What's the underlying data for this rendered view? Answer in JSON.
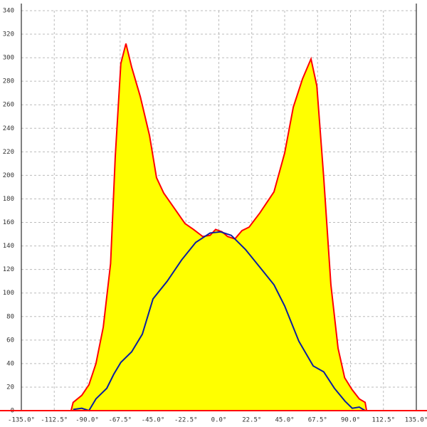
{
  "chart_data": {
    "type": "area",
    "xlim": [
      -135,
      135
    ],
    "ylim": [
      0,
      340
    ],
    "xticks": [
      {
        "value": -135,
        "label": "-135.0°"
      },
      {
        "value": -112.5,
        "label": "-112.5°"
      },
      {
        "value": -90,
        "label": "-90.0°"
      },
      {
        "value": -67.5,
        "label": "-67.5°"
      },
      {
        "value": -45,
        "label": "-45.0°"
      },
      {
        "value": -22.5,
        "label": "-22.5°"
      },
      {
        "value": 0,
        "label": "0.0°"
      },
      {
        "value": 22.5,
        "label": "22.5°"
      },
      {
        "value": 45,
        "label": "45.0°"
      },
      {
        "value": 67.5,
        "label": "67.5°"
      },
      {
        "value": 90,
        "label": "90.0°"
      },
      {
        "value": 112.5,
        "label": "112.5°"
      },
      {
        "value": 135,
        "label": "135.0°"
      }
    ],
    "yticks": [
      0,
      20,
      40,
      60,
      80,
      100,
      120,
      140,
      160,
      180,
      200,
      220,
      240,
      260,
      280,
      300,
      320,
      340
    ],
    "grid": true,
    "series": [
      {
        "color": "#ff0000",
        "fill": "#ffff00",
        "x": [
          -101,
          -99.6,
          -93.7,
          -88.8,
          -84,
          -79,
          -74,
          -70.8,
          -67,
          -63.5,
          -59.6,
          -53.7,
          -47.4,
          -42.6,
          -37.7,
          -30.4,
          -23.1,
          -17.3,
          -11,
          -6,
          -2.2,
          2.2,
          6,
          11,
          15.8,
          20.7,
          28,
          37.7,
          45,
          50.9,
          57.2,
          63,
          67,
          71.7,
          76.6,
          81.5,
          86,
          91,
          96,
          100,
          101
        ],
        "values": [
          0,
          7,
          13,
          22,
          40,
          71,
          125,
          216,
          295,
          312,
          292,
          267,
          234,
          198,
          185,
          172,
          159,
          154,
          148,
          149,
          154,
          152,
          148,
          146,
          153,
          156,
          168,
          186,
          219,
          258,
          282,
          299,
          276,
          198,
          107,
          53,
          28,
          18,
          10,
          7,
          0
        ]
      },
      {
        "color": "#0a1ea0",
        "x": [
          -99.6,
          -93.7,
          -88.8,
          -84,
          -76.6,
          -71.8,
          -67,
          -59.6,
          -52.3,
          -45,
          -35.3,
          -25.5,
          -15.8,
          -6,
          1.2,
          8.5,
          18.2,
          28,
          37.7,
          45,
          54.7,
          64.5,
          71.7,
          79,
          86.3,
          91.2,
          96,
          100
        ],
        "values": [
          1,
          2,
          0,
          10,
          19,
          31,
          41,
          50,
          65,
          95,
          110,
          128,
          143,
          151,
          152,
          149,
          137,
          122,
          107,
          89,
          59,
          38,
          33,
          19,
          8,
          2,
          3,
          0
        ]
      }
    ]
  }
}
